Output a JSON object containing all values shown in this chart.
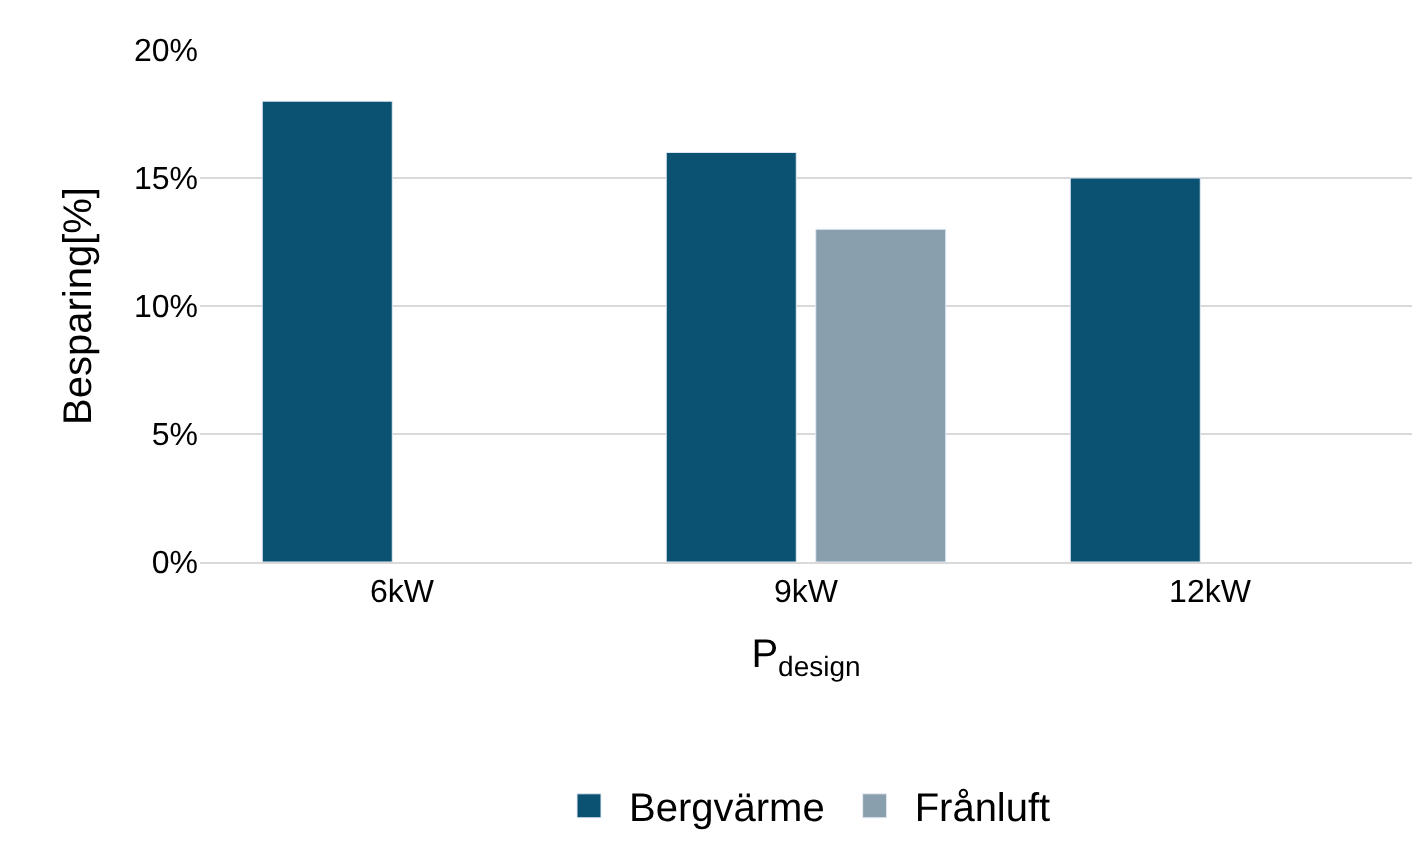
{
  "chart_data": {
    "type": "bar",
    "categories": [
      "6kW",
      "9kW",
      "12kW"
    ],
    "series": [
      {
        "name": "Bergvärme",
        "color": "#0b5272",
        "values": [
          18,
          16,
          15
        ]
      },
      {
        "name": "Frånluft",
        "color": "#8a9fae",
        "values": [
          null,
          13,
          null
        ]
      }
    ],
    "xlabel": "P$_{design}$",
    "ylabel": "Besparing[%]",
    "ylim": [
      0,
      20
    ],
    "yticks": [
      {
        "value": 0,
        "label": "0%"
      },
      {
        "value": 5,
        "label": "5%"
      },
      {
        "value": 10,
        "label": "10%"
      },
      {
        "value": 15,
        "label": "15%"
      },
      {
        "value": 20,
        "label": "20%"
      }
    ],
    "grid": "y",
    "legend": "bottom"
  }
}
